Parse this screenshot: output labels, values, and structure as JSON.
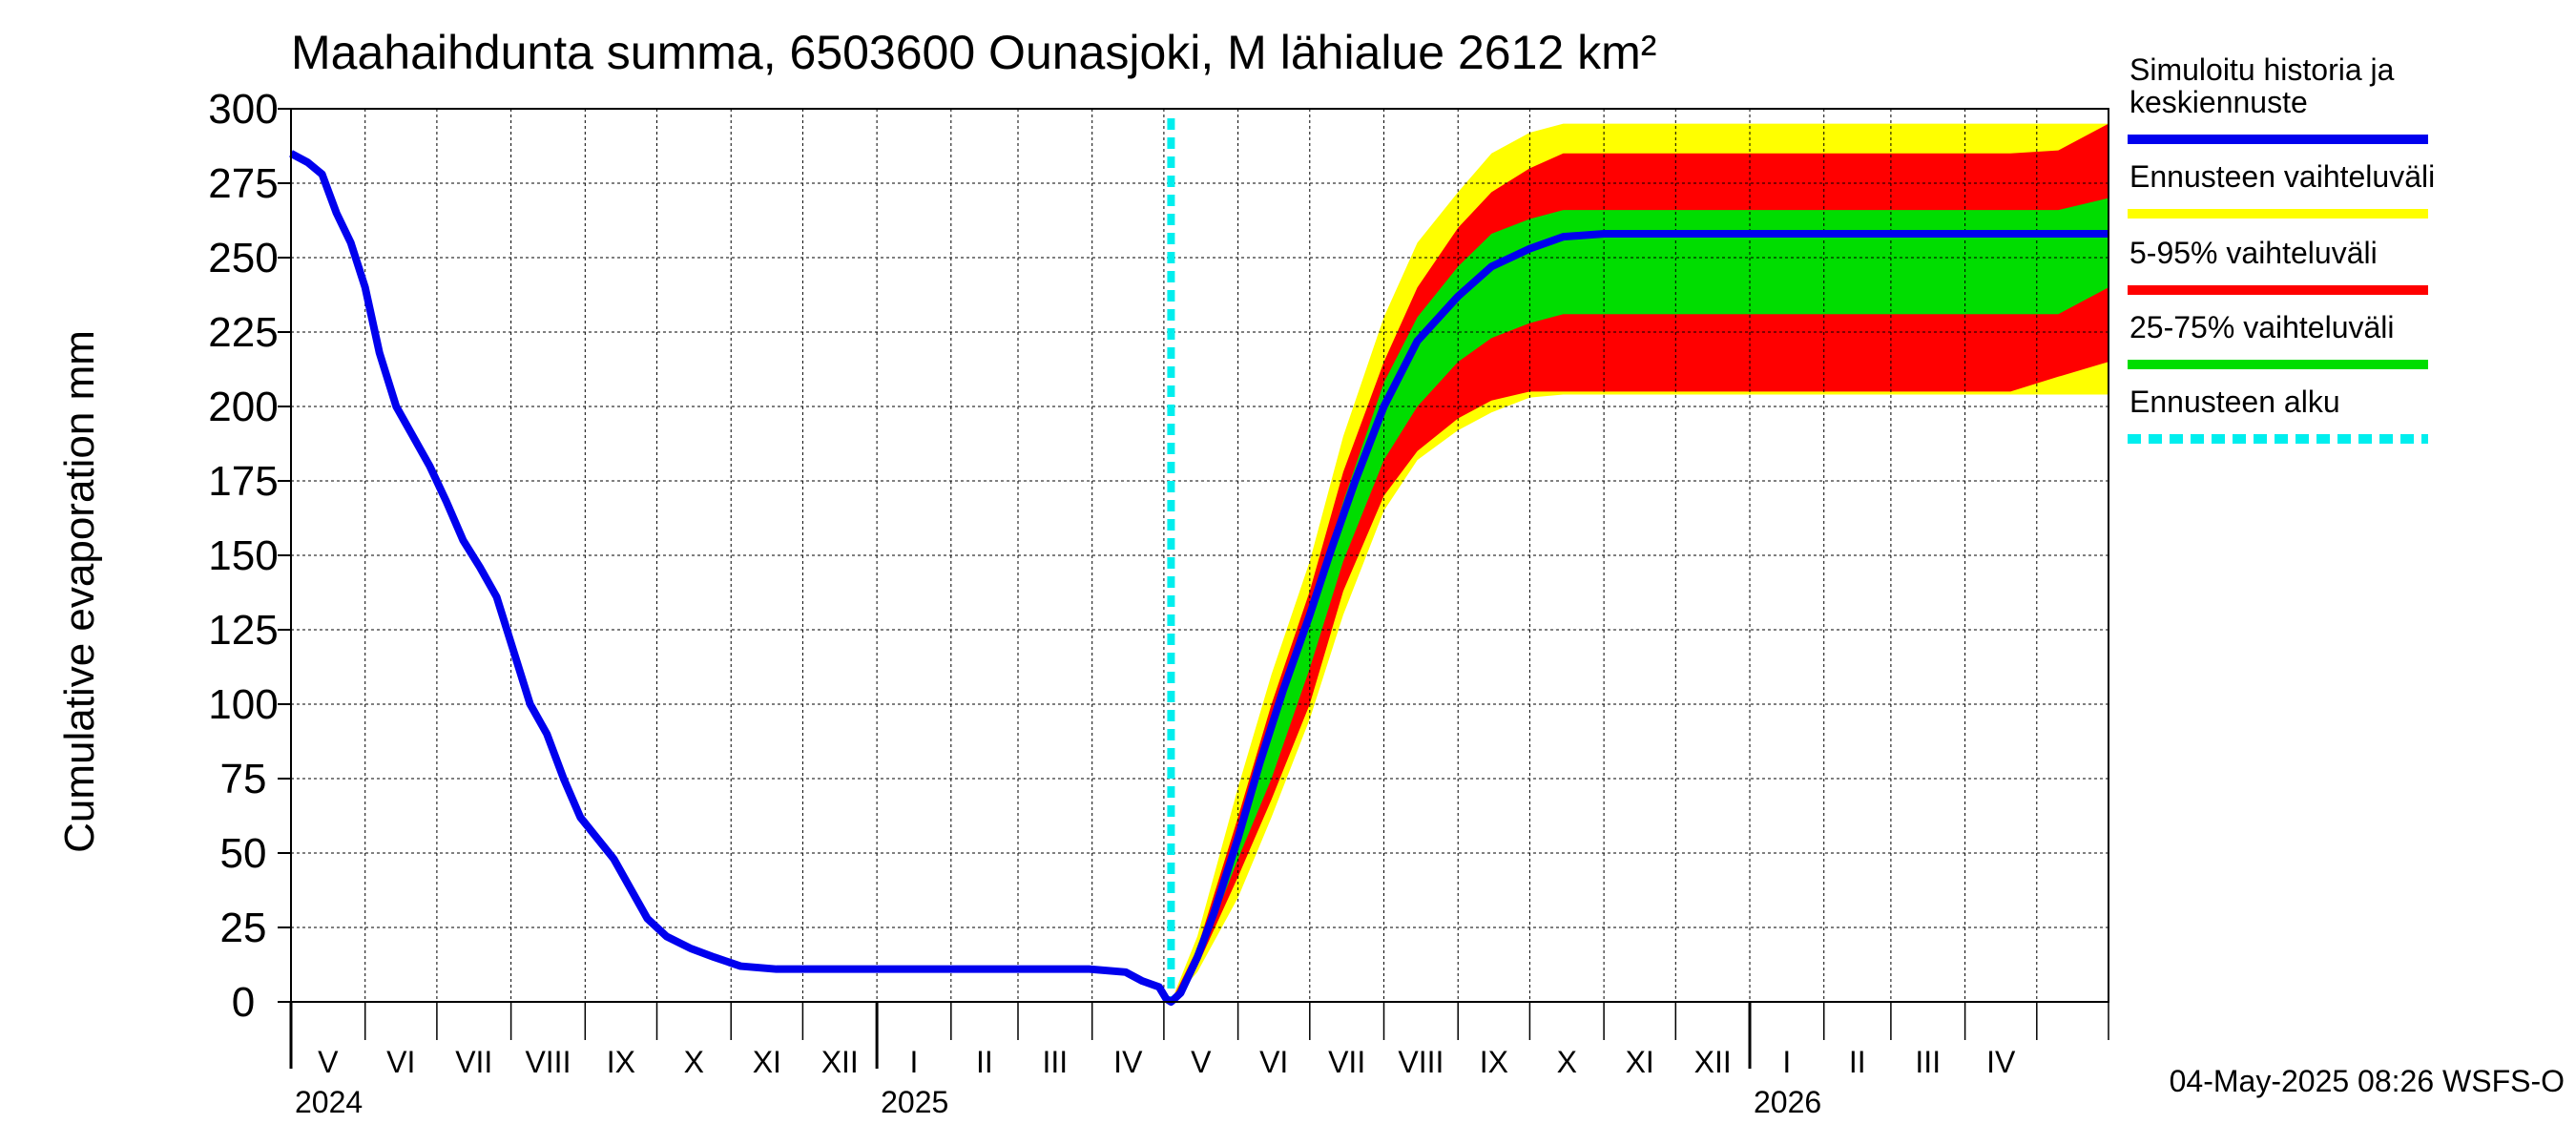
{
  "chart_data": {
    "type": "area",
    "title": "Maahaihdunta summa, 6503600 Ounasjoki, M lähialue 2612 km²",
    "ylabel": "Cumulative evaporation   mm",
    "xlabel": "",
    "ylim": [
      0,
      300
    ],
    "yticks": [
      0,
      25,
      50,
      75,
      100,
      125,
      150,
      175,
      200,
      225,
      250,
      275,
      300
    ],
    "xlim": [
      "2024-05-01",
      "2026-05-31"
    ],
    "grid": true,
    "legend_position": "right",
    "months": [
      {
        "label": "V",
        "start": "2024-05-01"
      },
      {
        "label": "VI",
        "start": "2024-06-01"
      },
      {
        "label": "VII",
        "start": "2024-07-01"
      },
      {
        "label": "VIII",
        "start": "2024-08-01"
      },
      {
        "label": "IX",
        "start": "2024-09-01"
      },
      {
        "label": "X",
        "start": "2024-10-01"
      },
      {
        "label": "XI",
        "start": "2024-11-01"
      },
      {
        "label": "XII",
        "start": "2024-12-01"
      },
      {
        "label": "I",
        "start": "2025-01-01"
      },
      {
        "label": "II",
        "start": "2025-02-01"
      },
      {
        "label": "III",
        "start": "2025-03-01"
      },
      {
        "label": "IV",
        "start": "2025-04-01"
      },
      {
        "label": "V",
        "start": "2025-05-01"
      },
      {
        "label": "VI",
        "start": "2025-06-01"
      },
      {
        "label": "VII",
        "start": "2025-07-01"
      },
      {
        "label": "VIII",
        "start": "2025-08-01"
      },
      {
        "label": "IX",
        "start": "2025-09-01"
      },
      {
        "label": "X",
        "start": "2025-10-01"
      },
      {
        "label": "XI",
        "start": "2025-11-01"
      },
      {
        "label": "XII",
        "start": "2025-12-01"
      },
      {
        "label": "I",
        "start": "2026-01-01"
      },
      {
        "label": "II",
        "start": "2026-02-01"
      },
      {
        "label": "III",
        "start": "2026-03-01"
      },
      {
        "label": "IV",
        "start": "2026-04-01"
      },
      {
        "label": "",
        "start": "2026-05-01"
      }
    ],
    "years": [
      {
        "label": "2024",
        "at": "2024-05-01"
      },
      {
        "label": "2025",
        "at": "2025-01-01"
      },
      {
        "label": "2026",
        "at": "2026-01-01"
      }
    ],
    "forecast_start": "2025-05-04",
    "series": [
      {
        "name": "Simuloitu historia ja keskiennuste",
        "color": "#0000ee",
        "kind": "line",
        "points": [
          [
            "2024-05-01",
            285
          ],
          [
            "2024-05-08",
            282
          ],
          [
            "2024-05-14",
            278
          ],
          [
            "2024-05-20",
            265
          ],
          [
            "2024-05-26",
            255
          ],
          [
            "2024-06-01",
            240
          ],
          [
            "2024-06-07",
            218
          ],
          [
            "2024-06-14",
            200
          ],
          [
            "2024-06-21",
            190
          ],
          [
            "2024-06-28",
            180
          ],
          [
            "2024-07-05",
            168
          ],
          [
            "2024-07-12",
            155
          ],
          [
            "2024-07-19",
            146
          ],
          [
            "2024-07-26",
            136
          ],
          [
            "2024-08-02",
            118
          ],
          [
            "2024-08-09",
            100
          ],
          [
            "2024-08-16",
            90
          ],
          [
            "2024-08-23",
            75
          ],
          [
            "2024-08-30",
            62
          ],
          [
            "2024-09-06",
            55
          ],
          [
            "2024-09-13",
            48
          ],
          [
            "2024-09-20",
            38
          ],
          [
            "2024-09-27",
            28
          ],
          [
            "2024-10-05",
            22
          ],
          [
            "2024-10-15",
            18
          ],
          [
            "2024-10-25",
            15
          ],
          [
            "2024-11-05",
            12
          ],
          [
            "2024-11-20",
            11
          ],
          [
            "2025-01-15",
            11
          ],
          [
            "2025-03-31",
            11
          ],
          [
            "2025-04-15",
            10
          ],
          [
            "2025-04-22",
            7
          ],
          [
            "2025-04-29",
            5
          ],
          [
            "2025-05-02",
            1
          ],
          [
            "2025-05-04",
            0
          ],
          [
            "2025-05-08",
            3
          ],
          [
            "2025-05-15",
            15
          ],
          [
            "2025-05-22",
            30
          ],
          [
            "2025-06-01",
            55
          ],
          [
            "2025-06-10",
            80
          ],
          [
            "2025-06-20",
            105
          ],
          [
            "2025-07-01",
            130
          ],
          [
            "2025-07-10",
            152
          ],
          [
            "2025-07-20",
            175
          ],
          [
            "2025-08-01",
            200
          ],
          [
            "2025-08-15",
            222
          ],
          [
            "2025-09-01",
            237
          ],
          [
            "2025-09-15",
            247
          ],
          [
            "2025-10-01",
            253
          ],
          [
            "2025-10-15",
            257
          ],
          [
            "2025-11-01",
            258
          ],
          [
            "2026-05-31",
            258
          ]
        ]
      },
      {
        "name": "Ennusteen vaihteluväli",
        "color": "#ffff00",
        "kind": "band",
        "points": [
          [
            "2025-05-04",
            0,
            0
          ],
          [
            "2025-05-15",
            10,
            22
          ],
          [
            "2025-06-01",
            35,
            72
          ],
          [
            "2025-06-15",
            62,
            110
          ],
          [
            "2025-07-01",
            95,
            148
          ],
          [
            "2025-07-15",
            130,
            190
          ],
          [
            "2025-08-01",
            165,
            230
          ],
          [
            "2025-08-15",
            182,
            255
          ],
          [
            "2025-09-01",
            192,
            272
          ],
          [
            "2025-09-15",
            198,
            285
          ],
          [
            "2025-10-01",
            203,
            292
          ],
          [
            "2025-10-15",
            204,
            295
          ],
          [
            "2026-05-01",
            204,
            295
          ],
          [
            "2026-05-31",
            204,
            295
          ]
        ]
      },
      {
        "name": "5-95% vaihteluväli",
        "color": "#ff0000",
        "kind": "band",
        "points": [
          [
            "2025-05-04",
            0,
            0
          ],
          [
            "2025-05-15",
            12,
            18
          ],
          [
            "2025-06-01",
            42,
            62
          ],
          [
            "2025-06-15",
            68,
            100
          ],
          [
            "2025-07-01",
            100,
            138
          ],
          [
            "2025-07-15",
            138,
            178
          ],
          [
            "2025-08-01",
            170,
            215
          ],
          [
            "2025-08-15",
            185,
            240
          ],
          [
            "2025-09-01",
            196,
            260
          ],
          [
            "2025-09-15",
            202,
            272
          ],
          [
            "2025-10-01",
            205,
            280
          ],
          [
            "2025-10-15",
            205,
            285
          ],
          [
            "2026-04-20",
            205,
            285
          ],
          [
            "2026-05-10",
            210,
            286
          ],
          [
            "2026-05-31",
            215,
            295
          ]
        ]
      },
      {
        "name": "25-75% vaihteluväli",
        "color": "#00dd00",
        "kind": "band",
        "points": [
          [
            "2025-05-04",
            0,
            0
          ],
          [
            "2025-05-15",
            13,
            16
          ],
          [
            "2025-06-01",
            48,
            58
          ],
          [
            "2025-06-15",
            75,
            90
          ],
          [
            "2025-07-01",
            112,
            130
          ],
          [
            "2025-07-15",
            148,
            168
          ],
          [
            "2025-08-01",
            182,
            208
          ],
          [
            "2025-08-15",
            200,
            230
          ],
          [
            "2025-09-01",
            215,
            247
          ],
          [
            "2025-09-15",
            223,
            258
          ],
          [
            "2025-10-01",
            228,
            263
          ],
          [
            "2025-10-15",
            231,
            266
          ],
          [
            "2026-05-10",
            231,
            266
          ],
          [
            "2026-05-31",
            240,
            270
          ]
        ]
      }
    ]
  },
  "legend": [
    {
      "label": "Simuloitu historia ja keskiennuste",
      "color": "#0000ee",
      "style": "solid"
    },
    {
      "label": "Ennusteen vaihteluväli",
      "color": "#ffff00",
      "style": "solid"
    },
    {
      "label": "5-95% vaihteluväli",
      "color": "#ff0000",
      "style": "solid"
    },
    {
      "label": "25-75% vaihteluväli",
      "color": "#00dd00",
      "style": "solid"
    },
    {
      "label": "Ennusteen alku",
      "color": "#00eeee",
      "style": "dashed"
    }
  ],
  "footer": "04-May-2025 08:26 WSFS-O"
}
